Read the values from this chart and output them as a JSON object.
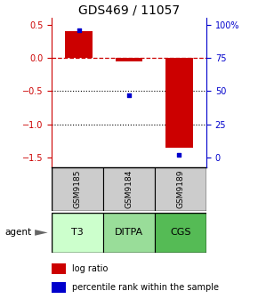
{
  "title": "GDS469 / 11057",
  "samples": [
    "GSM9185",
    "GSM9184",
    "GSM9189"
  ],
  "agents": [
    "T3",
    "DITPA",
    "CGS"
  ],
  "log_ratios": [
    0.4,
    -0.05,
    -1.35
  ],
  "percentile_ranks": [
    96,
    47,
    2
  ],
  "bar_color": "#cc0000",
  "pct_color": "#0000cc",
  "ylim_left": [
    -1.65,
    0.6
  ],
  "ylim_right": [
    0,
    110
  ],
  "yticks_left": [
    0.5,
    0.0,
    -0.5,
    -1.0,
    -1.5
  ],
  "yticks_right_vals": [
    100,
    75,
    50,
    25,
    0
  ],
  "yticks_right_pct": [
    100,
    75,
    50,
    25,
    0
  ],
  "grid_lines": [
    {
      "y": 0.0,
      "style": "--",
      "color": "#cc0000",
      "lw": 0.9
    },
    {
      "y": -0.5,
      "style": ":",
      "color": "#000000",
      "lw": 0.8
    },
    {
      "y": -1.0,
      "style": ":",
      "color": "#000000",
      "lw": 0.8
    }
  ],
  "agent_colors": [
    "#ccffcc",
    "#99dd99",
    "#55bb55"
  ],
  "sample_bg_color": "#cccccc",
  "bar_width": 0.55,
  "title_fontsize": 10,
  "tick_fontsize": 7,
  "legend_fontsize": 7
}
